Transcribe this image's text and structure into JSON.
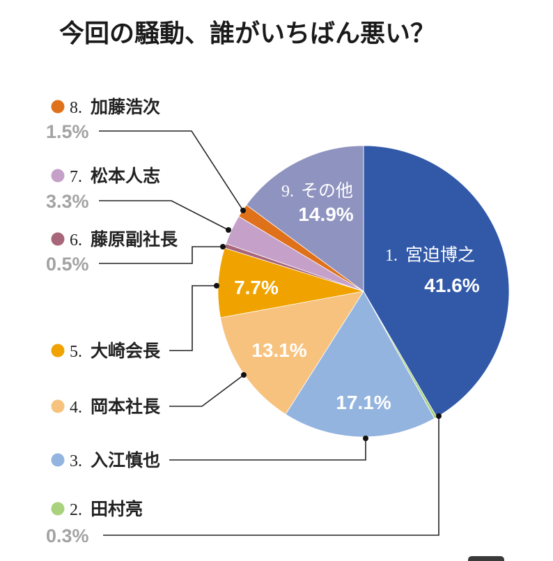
{
  "chart_data": {
    "type": "pie",
    "title": "今回の騒動、誰がいちばん悪い？",
    "slices": [
      {
        "num": "1.",
        "name": "宮迫博之",
        "value": 41.6,
        "value_label": "41.6%",
        "color": "#3259a8"
      },
      {
        "num": "2.",
        "name": "田村亮",
        "value": 0.3,
        "value_label": "0.3%",
        "color": "#a8d27c"
      },
      {
        "num": "3.",
        "name": "入江慎也",
        "value": 17.1,
        "value_label": "17.1%",
        "color": "#94b4e0"
      },
      {
        "num": "4.",
        "name": "岡本社長",
        "value": 13.1,
        "value_label": "13.1%",
        "color": "#f7c27e"
      },
      {
        "num": "5.",
        "name": "大崎会長",
        "value": 7.7,
        "value_label": "7.7%",
        "color": "#f0a300"
      },
      {
        "num": "6.",
        "name": "藤原副社長",
        "value": 0.5,
        "value_label": "0.5%",
        "color": "#a8667b"
      },
      {
        "num": "7.",
        "name": "松本人志",
        "value": 3.3,
        "value_label": "3.3%",
        "color": "#c5a1c9"
      },
      {
        "num": "8.",
        "name": "加藤浩次",
        "value": 1.5,
        "value_label": "1.5%",
        "color": "#e0711b"
      },
      {
        "num": "9.",
        "name": "その他",
        "value": 14.9,
        "value_label": "14.9%",
        "color": "#8f93bf"
      }
    ]
  }
}
